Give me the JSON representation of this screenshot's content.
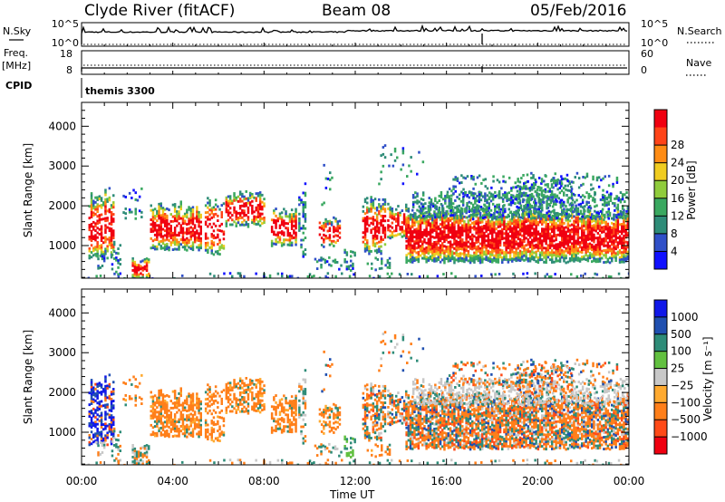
{
  "header": {
    "station": "Clyde River (fitACF)",
    "beam": "Beam 08",
    "date": "05/Feb/2016"
  },
  "nsky_panel": {
    "left_label": "N.Sky",
    "right_label": "N.Search",
    "left_ticks": [
      "10^5",
      "10^0"
    ],
    "right_ticks": [
      "10^5",
      "10^0"
    ]
  },
  "freq_panel": {
    "left_label_1": "Freq.",
    "left_label_2": "[MHz]",
    "right_label": "Nave",
    "left_ticks": [
      "18",
      "8"
    ],
    "right_ticks": [
      "60",
      "0"
    ]
  },
  "cpid": {
    "label": "CPID",
    "value": "themis 3300"
  },
  "chart_data": [
    {
      "type": "heatmap",
      "name": "power",
      "ylabel": "Slant Range [km]",
      "ylim": [
        180,
        4600
      ],
      "yticks": [
        1000,
        2000,
        3000,
        4000
      ],
      "xlim": [
        0,
        24
      ],
      "xticks": [
        "00:00",
        "04:00",
        "08:00",
        "12:00",
        "16:00",
        "20:00",
        "00:00"
      ],
      "colorbar": {
        "label": "Power [dB]",
        "range": [
          0,
          32
        ],
        "ticks": [
          "4",
          "8",
          "12",
          "16",
          "20",
          "24",
          "28"
        ],
        "colors": [
          "#1010ff",
          "#3050c8",
          "#2e8c78",
          "#3aa860",
          "#90cc3c",
          "#f0cc20",
          "#ff8c14",
          "#ff4418",
          "#f00010"
        ]
      }
    },
    {
      "type": "heatmap",
      "name": "velocity",
      "ylabel": "Slant Range [km]",
      "ylim": [
        180,
        4600
      ],
      "yticks": [
        1000,
        2000,
        3000,
        4000
      ],
      "xlim": [
        0,
        24
      ],
      "xticks": [
        "00:00",
        "04:00",
        "08:00",
        "12:00",
        "16:00",
        "20:00",
        "00:00"
      ],
      "xlabel": "Time UT",
      "colorbar": {
        "label": "Velocity [m s⁻¹]",
        "ticks": [
          "1000",
          "500",
          "100",
          "25",
          "−25",
          "−100",
          "−500",
          "−1000"
        ],
        "colors": [
          "#1018e8",
          "#2050b0",
          "#2e8c78",
          "#62c040",
          "#c8c8c8",
          "#ffaa30",
          "#ff7f1a",
          "#ff4a18",
          "#f00010"
        ]
      }
    }
  ]
}
